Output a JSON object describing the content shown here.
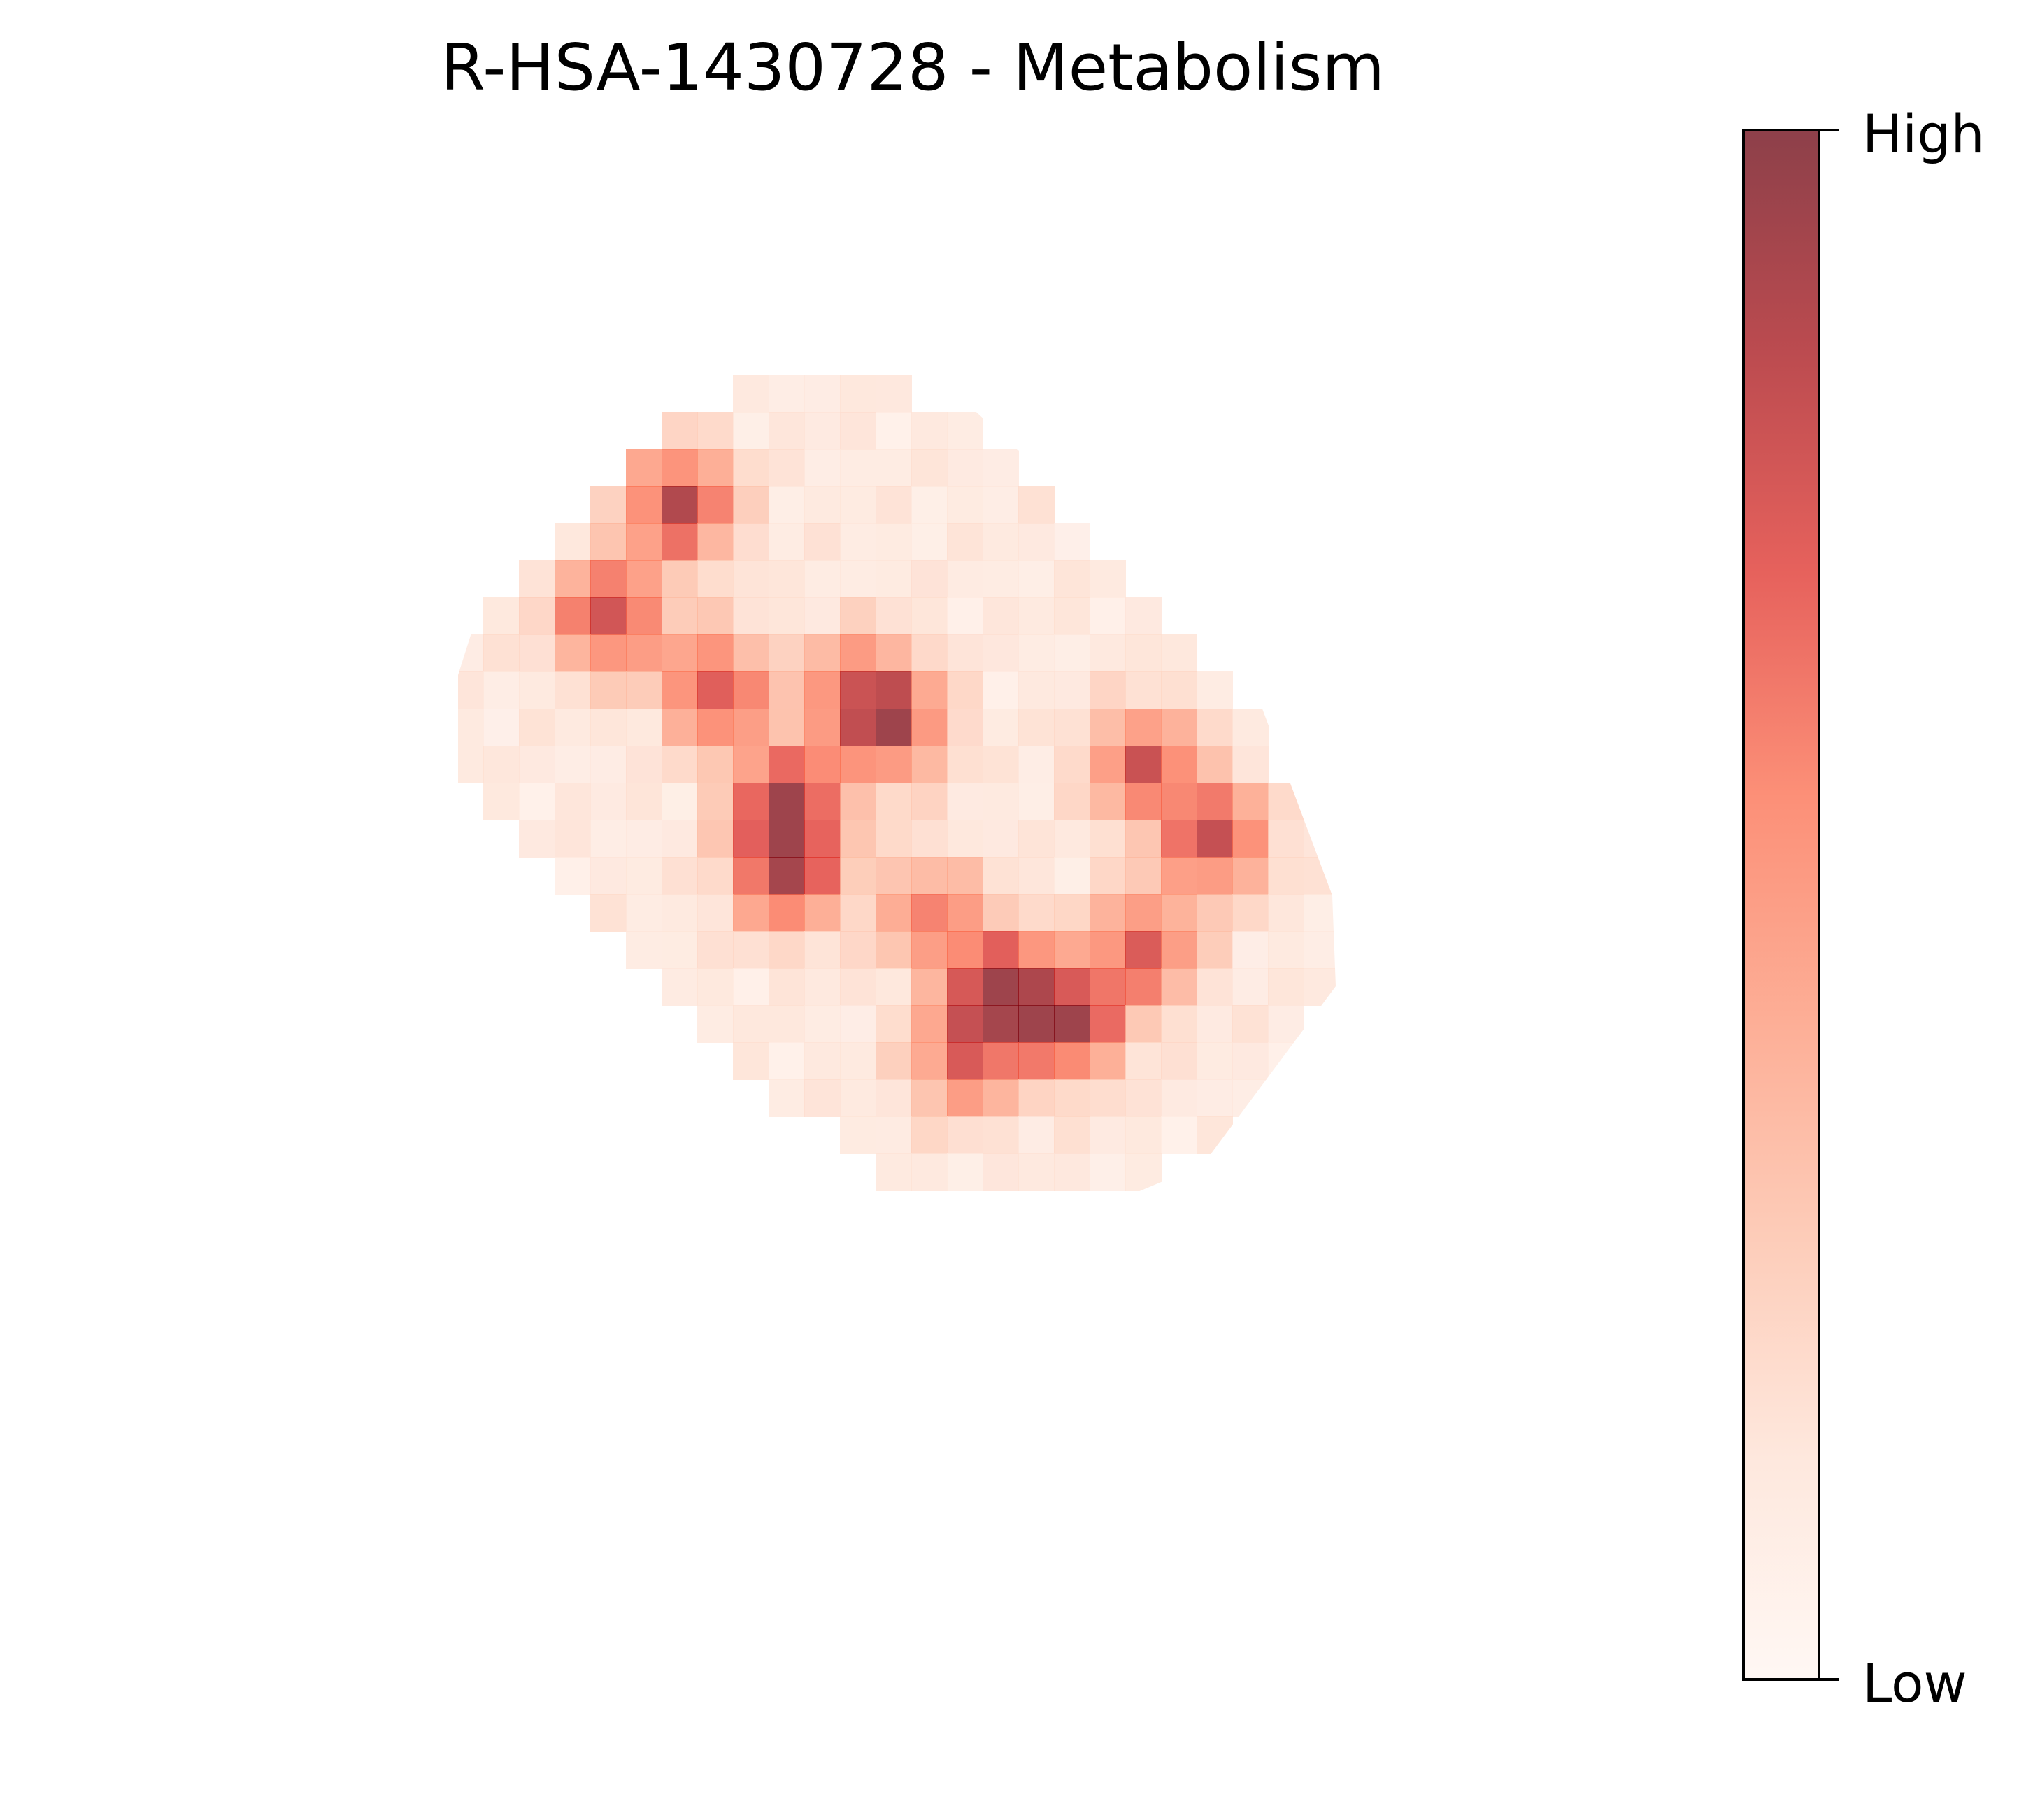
{
  "chart_data": {
    "type": "heatmap",
    "title": "R-HSA-1430728 - Metabolism",
    "xlabel": "",
    "ylabel": "",
    "grid": false,
    "axes_visible": false,
    "colormap": [
      "#fff5f0",
      "#fee0d2",
      "#fcbba1",
      "#fc9272",
      "#fb6a4a",
      "#de2d26",
      "#a50f15",
      "#67000d"
    ],
    "colormap_opacity": 0.75,
    "colorbar": {
      "high_label": "High",
      "low_label": "Low",
      "placement": "right"
    },
    "grid_rows": 26,
    "grid_cols": 26,
    "valid_cells": [
      {
        "r": 2,
        "c": [
          8,
          12
        ]
      },
      {
        "r": 3,
        "c": [
          6,
          14
        ]
      },
      {
        "r": 4,
        "c": [
          5,
          15
        ]
      },
      {
        "r": 5,
        "c": [
          4,
          16
        ]
      },
      {
        "r": 6,
        "c": [
          3,
          17
        ]
      },
      {
        "r": 7,
        "c": [
          2,
          18
        ]
      },
      {
        "r": 8,
        "c": [
          1,
          19
        ]
      },
      {
        "r": 9,
        "c": [
          0,
          20
        ]
      },
      {
        "r": 10,
        "c": [
          0,
          21
        ]
      },
      {
        "r": 11,
        "c": [
          0,
          22
        ]
      },
      {
        "r": 12,
        "c": [
          0,
          22
        ]
      },
      {
        "r": 13,
        "c": [
          1,
          23
        ]
      },
      {
        "r": 14,
        "c": [
          2,
          24
        ]
      },
      {
        "r": 15,
        "c": [
          3,
          25
        ]
      },
      {
        "r": 16,
        "c": [
          4,
          25
        ]
      },
      {
        "r": 17,
        "c": [
          5,
          24
        ]
      },
      {
        "r": 18,
        "c": [
          6,
          24
        ]
      },
      {
        "r": 19,
        "c": [
          7,
          23
        ]
      },
      {
        "r": 20,
        "c": [
          8,
          23
        ]
      },
      {
        "r": 21,
        "c": [
          9,
          22
        ]
      },
      {
        "r": 22,
        "c": [
          11,
          21
        ]
      },
      {
        "r": 23,
        "c": [
          12,
          19
        ]
      }
    ],
    "hotspots": [
      {
        "r": 5,
        "c": 6,
        "v": 0.75
      },
      {
        "r": 8,
        "c": 4,
        "v": 0.7
      },
      {
        "r": 10,
        "c": 7,
        "v": 0.65
      },
      {
        "r": 11,
        "c": 12,
        "v": 0.6
      },
      {
        "r": 13,
        "c": 9,
        "v": 0.8
      },
      {
        "r": 15,
        "c": 9,
        "v": 0.7
      },
      {
        "r": 12,
        "c": 19,
        "v": 0.62
      },
      {
        "r": 14,
        "c": 21,
        "v": 0.68
      },
      {
        "r": 18,
        "c": 15,
        "v": 0.8
      },
      {
        "r": 19,
        "c": 17,
        "v": 0.72
      },
      {
        "r": 17,
        "c": 19,
        "v": 0.6
      },
      {
        "r": 10,
        "c": 11,
        "v": 0.5
      },
      {
        "r": 16,
        "c": 13,
        "v": 0.45
      },
      {
        "r": 20,
        "c": 14,
        "v": 0.55
      }
    ],
    "base_level": 0.12,
    "cells_note": "intensity values 0 (Low) to 1 (High) on a grid over the tissue outline"
  }
}
